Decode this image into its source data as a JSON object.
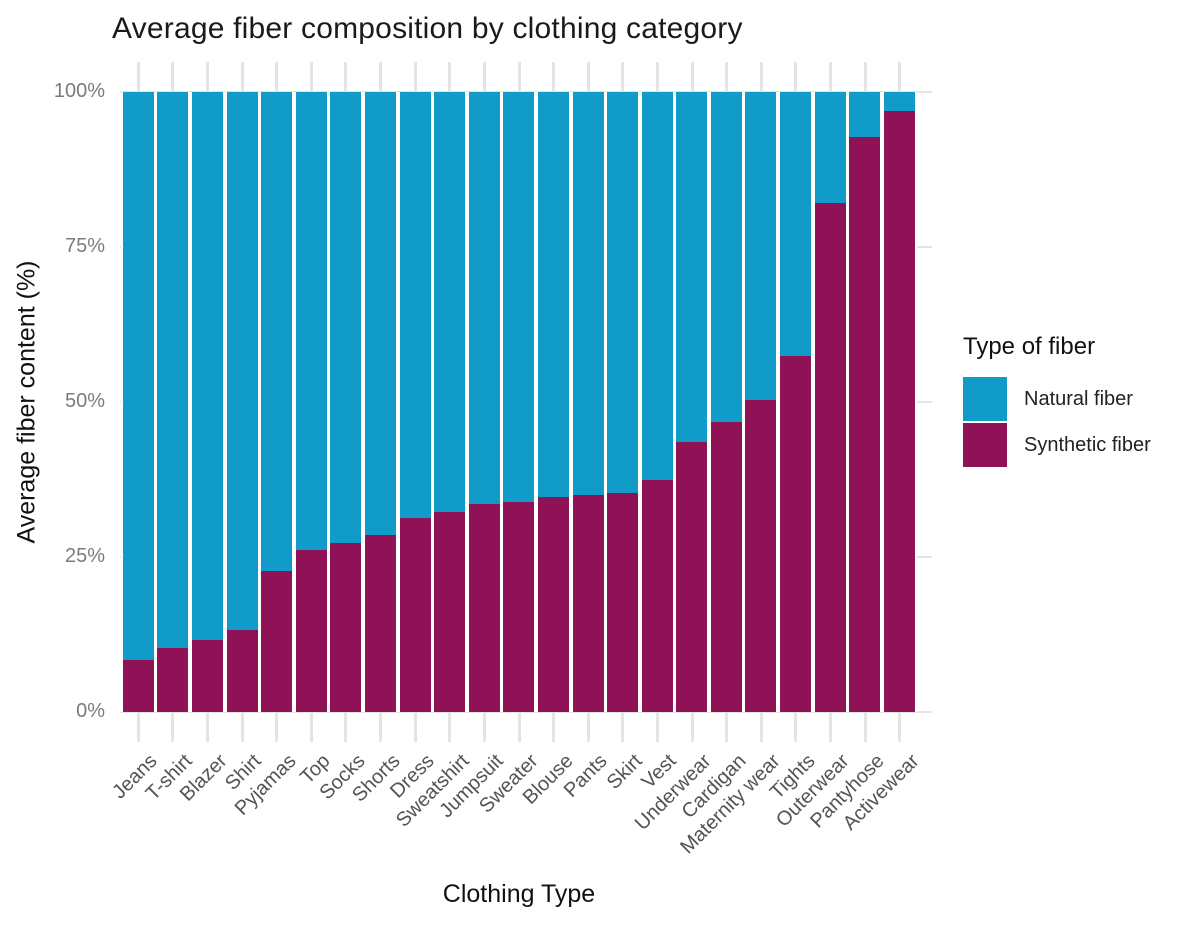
{
  "title": "Average fiber composition by clothing category",
  "axes": {
    "x_label": "Clothing Type",
    "y_label": "Average fiber content (%)"
  },
  "legend": {
    "title": "Type of fiber",
    "items": [
      {
        "label": "Natural fiber",
        "color": "#109bc9"
      },
      {
        "label": "Synthetic fiber",
        "color": "#8e1255"
      }
    ]
  },
  "colors": {
    "natural_fiber": "#109bc9",
    "synthetic_fiber": "#8e1255",
    "gridline": "#e4e4e4"
  },
  "chart_data": {
    "type": "bar",
    "stacked": true,
    "title": "Average fiber composition by clothing category",
    "xlabel": "Clothing Type",
    "ylabel": "Average fiber content (%)",
    "ylim": [
      0,
      100
    ],
    "y_tick_values": [
      0,
      25,
      50,
      75,
      100
    ],
    "y_tick_labels": [
      "0%",
      "25%",
      "50%",
      "75%",
      "100%"
    ],
    "grid": true,
    "legend_position": "right",
    "categories": [
      "Jeans",
      "T-shirt",
      "Blazer",
      "Shirt",
      "Pyjamas",
      "Top",
      "Socks",
      "Shorts",
      "Dress",
      "Sweatshirt",
      "Jumpsuit",
      "Sweater",
      "Blouse",
      "Pants",
      "Skirt",
      "Vest",
      "Underwear",
      "Cardigan",
      "Maternity wear",
      "Tights",
      "Outerwear",
      "Pantyhose",
      "Activewear"
    ],
    "series": [
      {
        "name": "Synthetic fiber",
        "color": "#8e1255",
        "values": [
          8.4,
          10.3,
          11.6,
          13.2,
          22.8,
          26.2,
          27.3,
          28.6,
          31.3,
          32.3,
          33.6,
          33.9,
          34.6,
          35.0,
          35.3,
          37.5,
          43.5,
          46.8,
          50.4,
          57.4,
          82.1,
          92.7,
          96.9
        ]
      },
      {
        "name": "Natural fiber",
        "color": "#109bc9",
        "values": [
          91.6,
          89.7,
          88.4,
          86.8,
          77.2,
          73.8,
          72.7,
          71.4,
          68.7,
          67.7,
          66.4,
          66.1,
          65.4,
          65.0,
          64.7,
          62.5,
          56.5,
          53.2,
          49.6,
          42.6,
          17.9,
          7.3,
          3.1
        ]
      }
    ]
  }
}
